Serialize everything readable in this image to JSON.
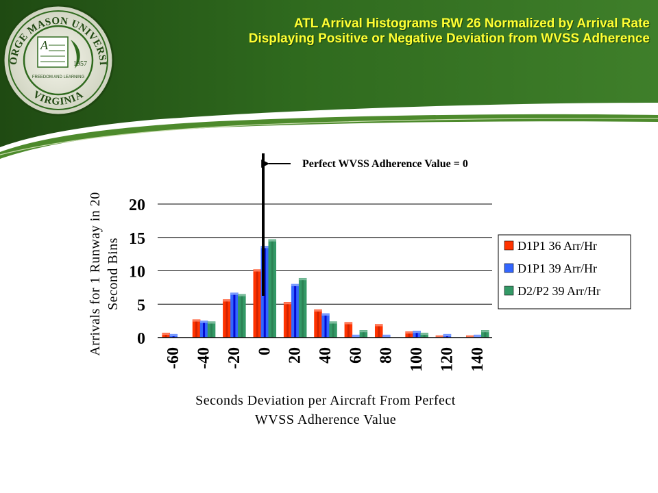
{
  "slide": {
    "title_line1": "ATL Arrival Histograms RW 26 Normalized by Arrival Rate",
    "title_line2": "Displaying Positive or Negative Deviation from WVSS Adherence",
    "seal": {
      "outer_text": "GEORGE MASON UNIVERSITY",
      "bottom_text": "VIRGINIA",
      "year": "1957",
      "motto": "FREEDOM AND LEARNING"
    },
    "colors": {
      "banner_green": "#2f6a1e",
      "title_yellow": "#ffff33"
    }
  },
  "annotation": "Perfect WVSS Adherence Value = 0",
  "chart_data": {
    "type": "bar",
    "categories": [
      "-60",
      "-40",
      "-20",
      "0",
      "20",
      "40",
      "60",
      "80",
      "100",
      "120",
      "140"
    ],
    "series": [
      {
        "name": "D1P1 36 Arr/Hr",
        "color": "#ff3300",
        "values": [
          0.7,
          2.7,
          5.7,
          10.2,
          5.3,
          4.2,
          2.3,
          2.0,
          0.9,
          0.3,
          0.3
        ]
      },
      {
        "name": "D1P1 39 Arr/Hr",
        "color": "#3366ff",
        "values": [
          0.5,
          2.5,
          6.7,
          13.7,
          8.0,
          3.6,
          0.4,
          0.4,
          1.0,
          0.5,
          0.4
        ]
      },
      {
        "name": "D2/P2 39 Arr/Hr",
        "color": "#339966",
        "values": [
          0.0,
          2.4,
          6.5,
          14.7,
          8.9,
          2.4,
          1.1,
          0.0,
          0.7,
          0.0,
          1.1
        ]
      }
    ],
    "yticks": [
      "0",
      "5",
      "10",
      "15",
      "20"
    ],
    "ylim": [
      0,
      20
    ],
    "xlabel_line1": "Seconds Deviation per Aircraft From Perfect",
    "xlabel_line2": "WVSS Adherence Value",
    "ylabel_line1": "Arrivals for 1 Runway in 20",
    "ylabel_line2": "Second Bins",
    "grid": true,
    "legend_position": "right"
  }
}
